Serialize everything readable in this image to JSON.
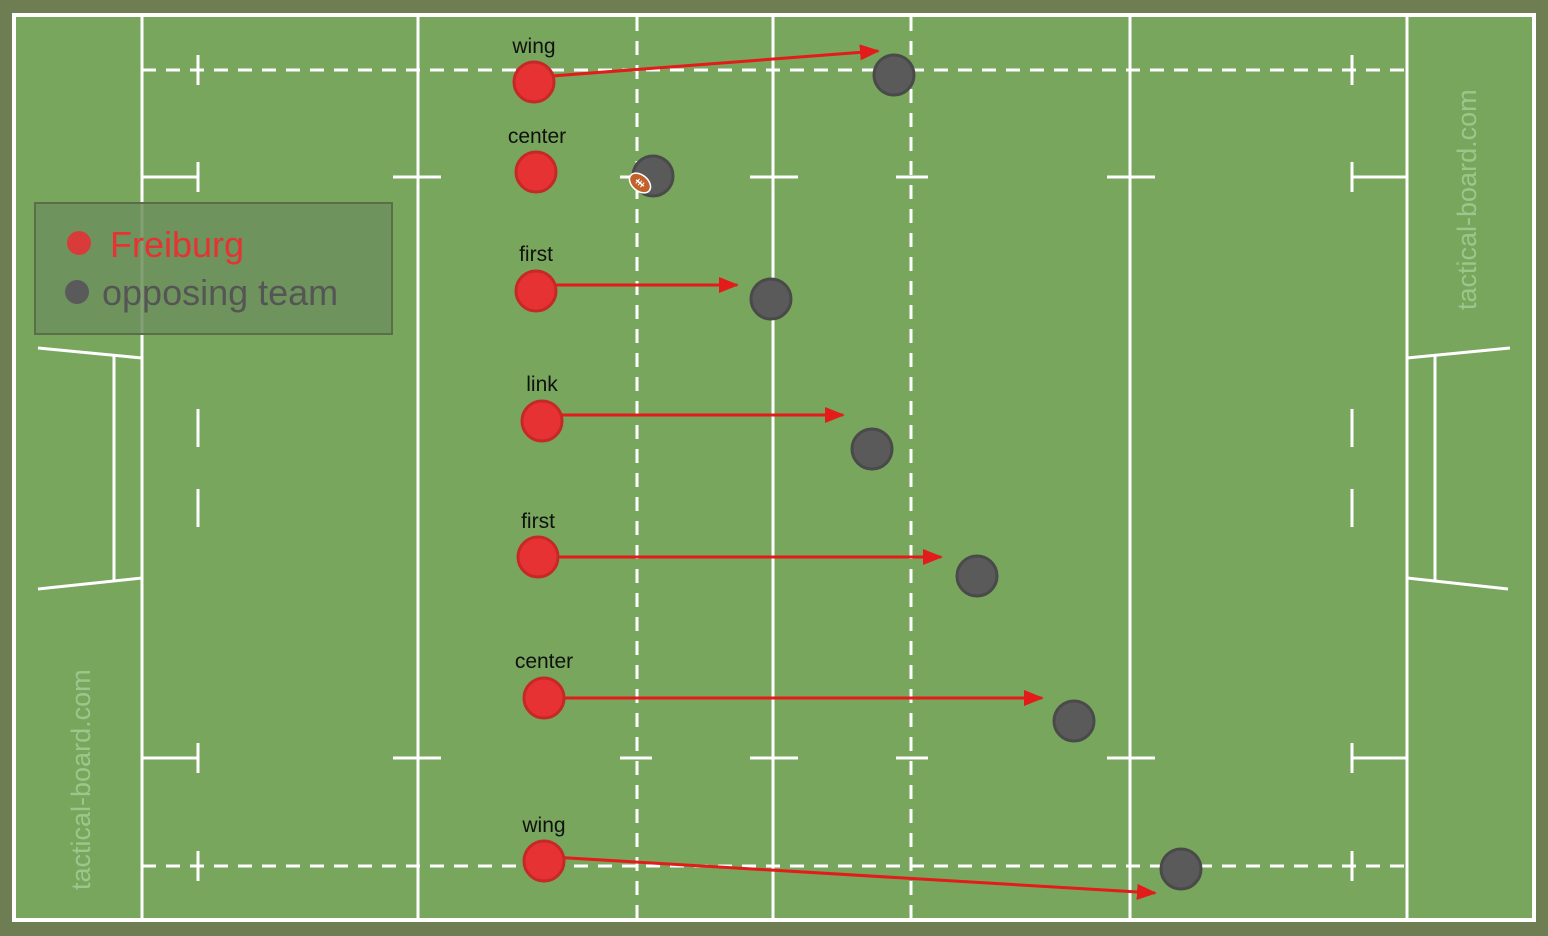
{
  "watermark": "tactical-board.com",
  "legend": [
    {
      "label": "Freiburg",
      "color": "#e63232"
    },
    {
      "label": "opposing team",
      "color": "#5a5a5a"
    }
  ],
  "players": {
    "red": [
      {
        "label": "wing"
      },
      {
        "label": "center"
      },
      {
        "label": "first"
      },
      {
        "label": "link"
      },
      {
        "label": "first"
      },
      {
        "label": "center"
      },
      {
        "label": "wing"
      }
    ]
  },
  "colors": {
    "field": "#77a65c",
    "border": "#6e7d52",
    "lines": "#ffffff",
    "team": "#e63232",
    "opponent": "#5a5a5a",
    "arrow": "#e41b1b",
    "ball": "#c0622a"
  },
  "icons": {
    "ball": "rugby-ball-icon",
    "arrow": "arrow-icon"
  }
}
